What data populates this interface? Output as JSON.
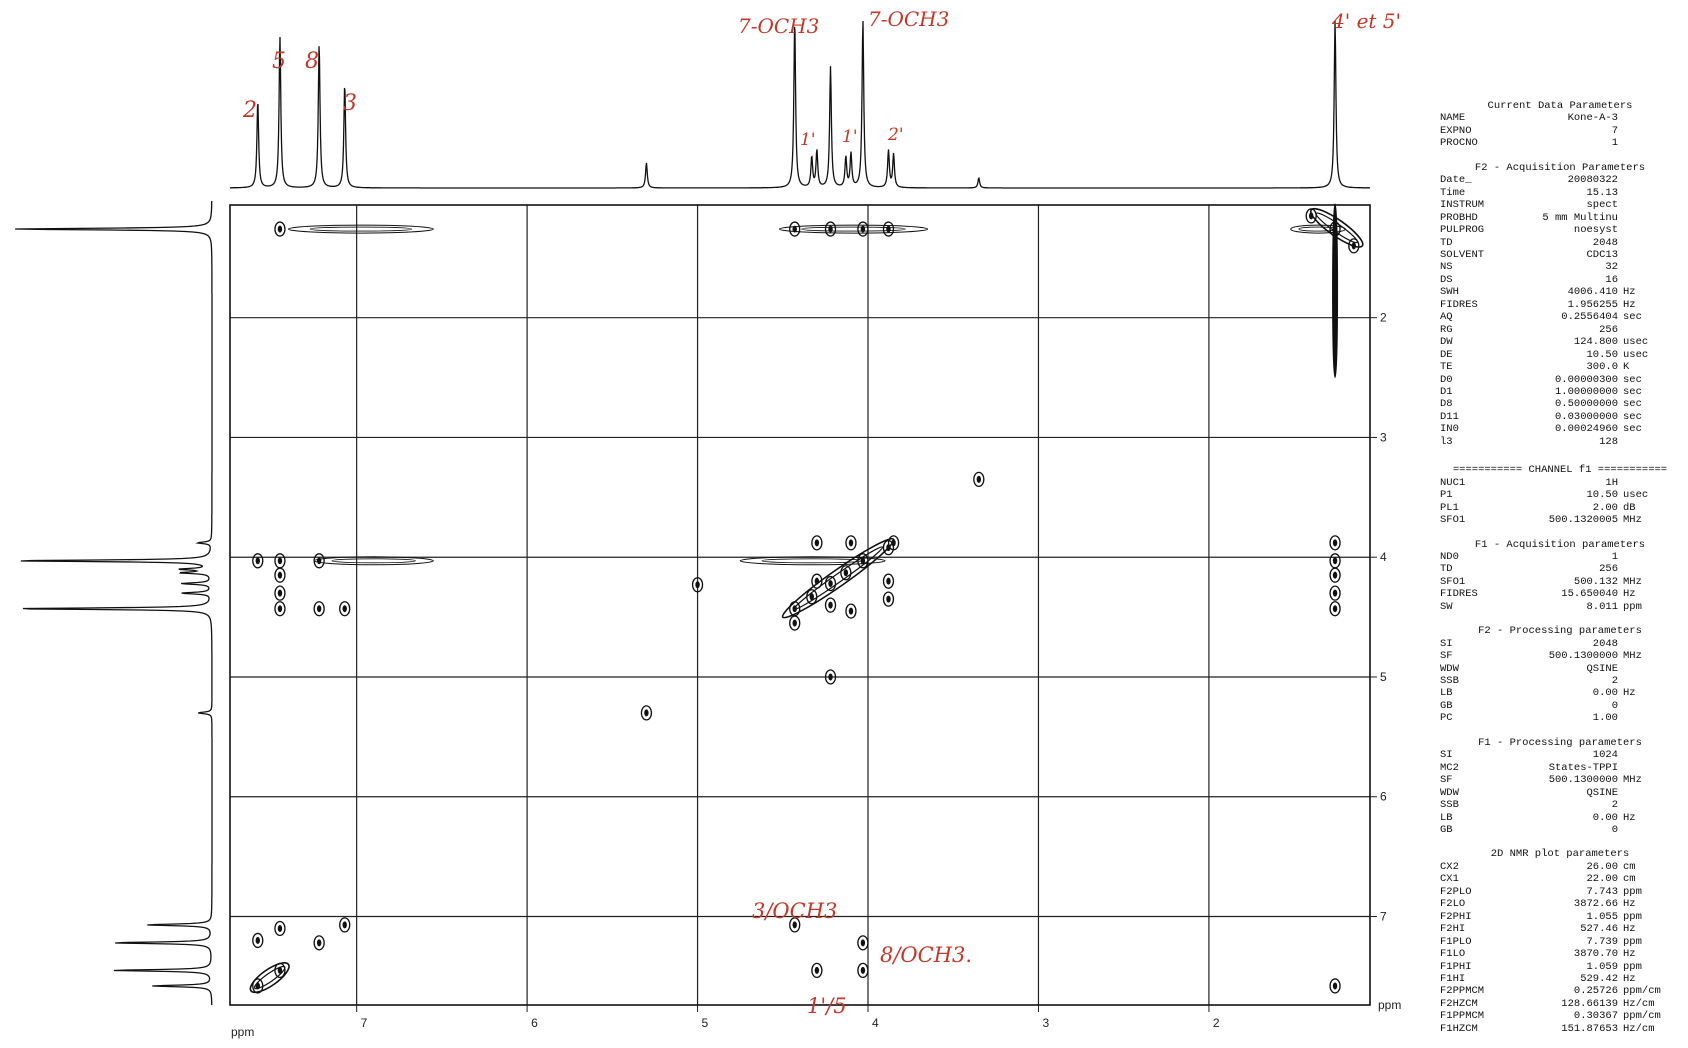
{
  "chart_data": {
    "type": "scatter",
    "title": "",
    "xlabel": "ppm",
    "ylabel": "ppm",
    "x_axis": {
      "range": [
        7.743,
        1.055
      ],
      "ticks": [
        7,
        6,
        5,
        4,
        3,
        2
      ],
      "unit_label": "ppm"
    },
    "y_axis": {
      "range": [
        1.059,
        7.739
      ],
      "ticks": [
        2,
        3,
        4,
        5,
        6,
        7
      ],
      "unit_label": "ppm"
    },
    "grid": true,
    "f2_projection_peaks": [
      {
        "ppm": 7.58,
        "h": 0.52
      },
      {
        "ppm": 7.45,
        "h": 0.9
      },
      {
        "ppm": 7.22,
        "h": 0.86
      },
      {
        "ppm": 7.07,
        "h": 0.62
      },
      {
        "ppm": 5.3,
        "h": 0.15
      },
      {
        "ppm": 4.43,
        "h": 1.0
      },
      {
        "ppm": 4.33,
        "h": 0.18
      },
      {
        "ppm": 4.3,
        "h": 0.22
      },
      {
        "ppm": 4.22,
        "h": 0.72
      },
      {
        "ppm": 4.13,
        "h": 0.18
      },
      {
        "ppm": 4.1,
        "h": 0.2
      },
      {
        "ppm": 4.03,
        "h": 1.0
      },
      {
        "ppm": 3.88,
        "h": 0.22
      },
      {
        "ppm": 3.85,
        "h": 0.2
      },
      {
        "ppm": 3.35,
        "h": 0.06
      },
      {
        "ppm": 1.26,
        "h": 1.0
      }
    ],
    "f1_projection_peaks": [
      {
        "ppm": 1.26,
        "h": 1.0
      },
      {
        "ppm": 3.88,
        "h": 0.07
      },
      {
        "ppm": 4.03,
        "h": 1.0
      },
      {
        "ppm": 4.1,
        "h": 0.15
      },
      {
        "ppm": 4.13,
        "h": 0.15
      },
      {
        "ppm": 4.22,
        "h": 0.15
      },
      {
        "ppm": 4.3,
        "h": 0.15
      },
      {
        "ppm": 4.43,
        "h": 1.0
      },
      {
        "ppm": 5.3,
        "h": 0.07
      },
      {
        "ppm": 7.07,
        "h": 0.33
      },
      {
        "ppm": 7.22,
        "h": 0.5
      },
      {
        "ppm": 7.45,
        "h": 0.5
      },
      {
        "ppm": 7.58,
        "h": 0.3
      }
    ],
    "cross_peaks": [
      {
        "x": 7.45,
        "y": 1.26
      },
      {
        "x": 4.43,
        "y": 1.26
      },
      {
        "x": 4.22,
        "y": 1.26
      },
      {
        "x": 4.03,
        "y": 1.26
      },
      {
        "x": 3.88,
        "y": 1.26
      },
      {
        "x": 1.26,
        "y": 1.26
      },
      {
        "x": 1.4,
        "y": 1.15
      },
      {
        "x": 1.15,
        "y": 1.4
      },
      {
        "x": 3.35,
        "y": 3.35
      },
      {
        "x": 7.58,
        "y": 4.03
      },
      {
        "x": 7.22,
        "y": 4.03
      },
      {
        "x": 1.26,
        "y": 3.88
      },
      {
        "x": 7.45,
        "y": 4.03
      },
      {
        "x": 7.45,
        "y": 4.15
      },
      {
        "x": 7.45,
        "y": 4.3
      },
      {
        "x": 7.45,
        "y": 4.43
      },
      {
        "x": 7.07,
        "y": 4.43
      },
      {
        "x": 7.22,
        "y": 4.43
      },
      {
        "x": 1.26,
        "y": 4.03
      },
      {
        "x": 1.26,
        "y": 4.15
      },
      {
        "x": 1.26,
        "y": 4.3
      },
      {
        "x": 1.26,
        "y": 4.43
      },
      {
        "x": 4.3,
        "y": 3.88
      },
      {
        "x": 4.1,
        "y": 3.88
      },
      {
        "x": 3.85,
        "y": 3.88
      },
      {
        "x": 4.43,
        "y": 4.43
      },
      {
        "x": 4.33,
        "y": 4.33
      },
      {
        "x": 4.22,
        "y": 4.22
      },
      {
        "x": 4.13,
        "y": 4.13
      },
      {
        "x": 4.03,
        "y": 4.03
      },
      {
        "x": 3.88,
        "y": 3.92
      },
      {
        "x": 4.43,
        "y": 4.55
      },
      {
        "x": 4.22,
        "y": 4.4
      },
      {
        "x": 4.1,
        "y": 4.45
      },
      {
        "x": 3.88,
        "y": 4.2
      },
      {
        "x": 3.88,
        "y": 4.35
      },
      {
        "x": 4.3,
        "y": 4.2
      },
      {
        "x": 4.22,
        "y": 5.0
      },
      {
        "x": 5.3,
        "y": 5.3
      },
      {
        "x": 5.0,
        "y": 4.23
      },
      {
        "x": 7.45,
        "y": 7.45
      },
      {
        "x": 7.22,
        "y": 7.22
      },
      {
        "x": 7.07,
        "y": 7.07
      },
      {
        "x": 7.58,
        "y": 7.58
      },
      {
        "x": 7.58,
        "y": 7.2
      },
      {
        "x": 7.45,
        "y": 7.1
      },
      {
        "x": 4.43,
        "y": 7.07
      },
      {
        "x": 4.03,
        "y": 7.22
      },
      {
        "x": 4.3,
        "y": 7.45
      },
      {
        "x": 4.03,
        "y": 7.45
      },
      {
        "x": 1.26,
        "y": 7.58
      }
    ],
    "diagonal_ridges": [
      {
        "x1": 7.62,
        "y1": 7.62,
        "x2": 7.4,
        "y2": 7.4
      },
      {
        "x1": 4.5,
        "y1": 4.5,
        "x2": 3.85,
        "y2": 3.85
      },
      {
        "x1": 1.4,
        "y1": 1.1,
        "x2": 1.1,
        "y2": 1.4
      }
    ],
    "t1_streaks": [
      {
        "y": 1.26,
        "x1": 7.4,
        "x2": 6.55
      },
      {
        "y": 1.26,
        "x1": 4.52,
        "x2": 3.65
      },
      {
        "y": 1.26,
        "x1": 1.52,
        "x2": 1.2
      },
      {
        "y": 4.03,
        "x1": 7.25,
        "x2": 6.55
      },
      {
        "y": 4.03,
        "x1": 4.75,
        "x2": 3.9
      }
    ],
    "f1_vertical_streaks": [
      {
        "x": 1.26,
        "y1": 1.05,
        "y2": 2.5
      }
    ]
  },
  "annotations": {
    "f2_2": "2",
    "f2_5": "5",
    "f2_8": "8",
    "f2_3": "3",
    "f2_och3_a": "7-OCH3",
    "f2_och3_b": "7-OCH3",
    "f2_1a": "1'",
    "f2_1b": "1'",
    "f2_2p": "2'",
    "f2_4p5p": "4' et 5'",
    "cross_3_och3": "3/OCH3",
    "cross_8_och3": "8/OCH3.",
    "cross_1p_5": "1'/5"
  },
  "axis_texts": {
    "ppm_bottom": "ppm",
    "ppm_right": "ppm"
  },
  "params_panel": {
    "sections": [
      {
        "title": "Current Data Parameters",
        "rows": [
          [
            "NAME",
            "Kone-A-3",
            ""
          ],
          [
            "EXPNO",
            "7",
            ""
          ],
          [
            "PROCNO",
            "1",
            ""
          ]
        ]
      },
      {
        "title": "F2 - Acquisition Parameters",
        "rows": [
          [
            "Date_",
            "20080322",
            ""
          ],
          [
            "Time",
            "15.13",
            ""
          ],
          [
            "INSTRUM",
            "spect",
            ""
          ],
          [
            "PROBHD",
            "5 mm Multinu",
            ""
          ],
          [
            "PULPROG",
            "noesyst",
            ""
          ],
          [
            "TD",
            "2048",
            ""
          ],
          [
            "SOLVENT",
            "CDC13",
            ""
          ],
          [
            "NS",
            "32",
            ""
          ],
          [
            "DS",
            "16",
            ""
          ],
          [
            "SWH",
            "4006.410",
            "Hz"
          ],
          [
            "FIDRES",
            "1.956255",
            "Hz"
          ],
          [
            "AQ",
            "0.2556404",
            "sec"
          ],
          [
            "RG",
            "256",
            ""
          ],
          [
            "DW",
            "124.800",
            "usec"
          ],
          [
            "DE",
            "10.50",
            "usec"
          ],
          [
            "TE",
            "300.0",
            "K"
          ],
          [
            "D0",
            "0.00000300",
            "sec"
          ],
          [
            "D1",
            "1.00000000",
            "sec"
          ],
          [
            "D8",
            "0.50000000",
            "sec"
          ],
          [
            "D11",
            "0.03000000",
            "sec"
          ],
          [
            "IN0",
            "0.00024960",
            "sec"
          ],
          [
            "l3",
            "128",
            ""
          ]
        ]
      },
      {
        "title": "=========== CHANNEL f1 ===========",
        "sep": true,
        "rows": [
          [
            "NUC1",
            "1H",
            ""
          ],
          [
            "P1",
            "10.50",
            "usec"
          ],
          [
            "PL1",
            "2.00",
            "dB"
          ],
          [
            "SFO1",
            "500.1320005",
            "MHz"
          ]
        ]
      },
      {
        "title": "F1 - Acquisition parameters",
        "rows": [
          [
            "ND0",
            "1",
            ""
          ],
          [
            "TD",
            "256",
            ""
          ],
          [
            "SFO1",
            "500.132",
            "MHz"
          ],
          [
            "FIDRES",
            "15.650040",
            "Hz"
          ],
          [
            "SW",
            "8.011",
            "ppm"
          ]
        ]
      },
      {
        "title": "F2 - Processing parameters",
        "rows": [
          [
            "SI",
            "2048",
            ""
          ],
          [
            "SF",
            "500.1300000",
            "MHz"
          ],
          [
            "WDW",
            "QSINE",
            ""
          ],
          [
            "SSB",
            "2",
            ""
          ],
          [
            "LB",
            "0.00",
            "Hz"
          ],
          [
            "GB",
            "0",
            ""
          ],
          [
            "PC",
            "1.00",
            ""
          ]
        ]
      },
      {
        "title": "F1 - Processing parameters",
        "rows": [
          [
            "SI",
            "1024",
            ""
          ],
          [
            "MC2",
            "States-TPPI",
            ""
          ],
          [
            "SF",
            "500.1300000",
            "MHz"
          ],
          [
            "WDW",
            "QSINE",
            ""
          ],
          [
            "SSB",
            "2",
            ""
          ],
          [
            "LB",
            "0.00",
            "Hz"
          ],
          [
            "GB",
            "0",
            ""
          ]
        ]
      },
      {
        "title": "2D NMR plot parameters",
        "rows": [
          [
            "CX2",
            "26.00",
            "cm"
          ],
          [
            "CX1",
            "22.00",
            "cm"
          ],
          [
            "F2PLO",
            "7.743",
            "ppm"
          ],
          [
            "F2LO",
            "3872.66",
            "Hz"
          ],
          [
            "F2PHI",
            "1.055",
            "ppm"
          ],
          [
            "F2HI",
            "527.46",
            "Hz"
          ],
          [
            "F1PLO",
            "7.739",
            "ppm"
          ],
          [
            "F1LO",
            "3870.70",
            "Hz"
          ],
          [
            "F1PHI",
            "1.059",
            "ppm"
          ],
          [
            "F1HI",
            "529.42",
            "Hz"
          ],
          [
            "F2PPMCM",
            "0.25726",
            "ppm/cm"
          ],
          [
            "F2HZCM",
            "128.66139",
            "Hz/cm"
          ],
          [
            "F1PPMCM",
            "0.30367",
            "ppm/cm"
          ],
          [
            "F1HZCM",
            "151.87653",
            "Hz/cm"
          ]
        ]
      }
    ]
  }
}
